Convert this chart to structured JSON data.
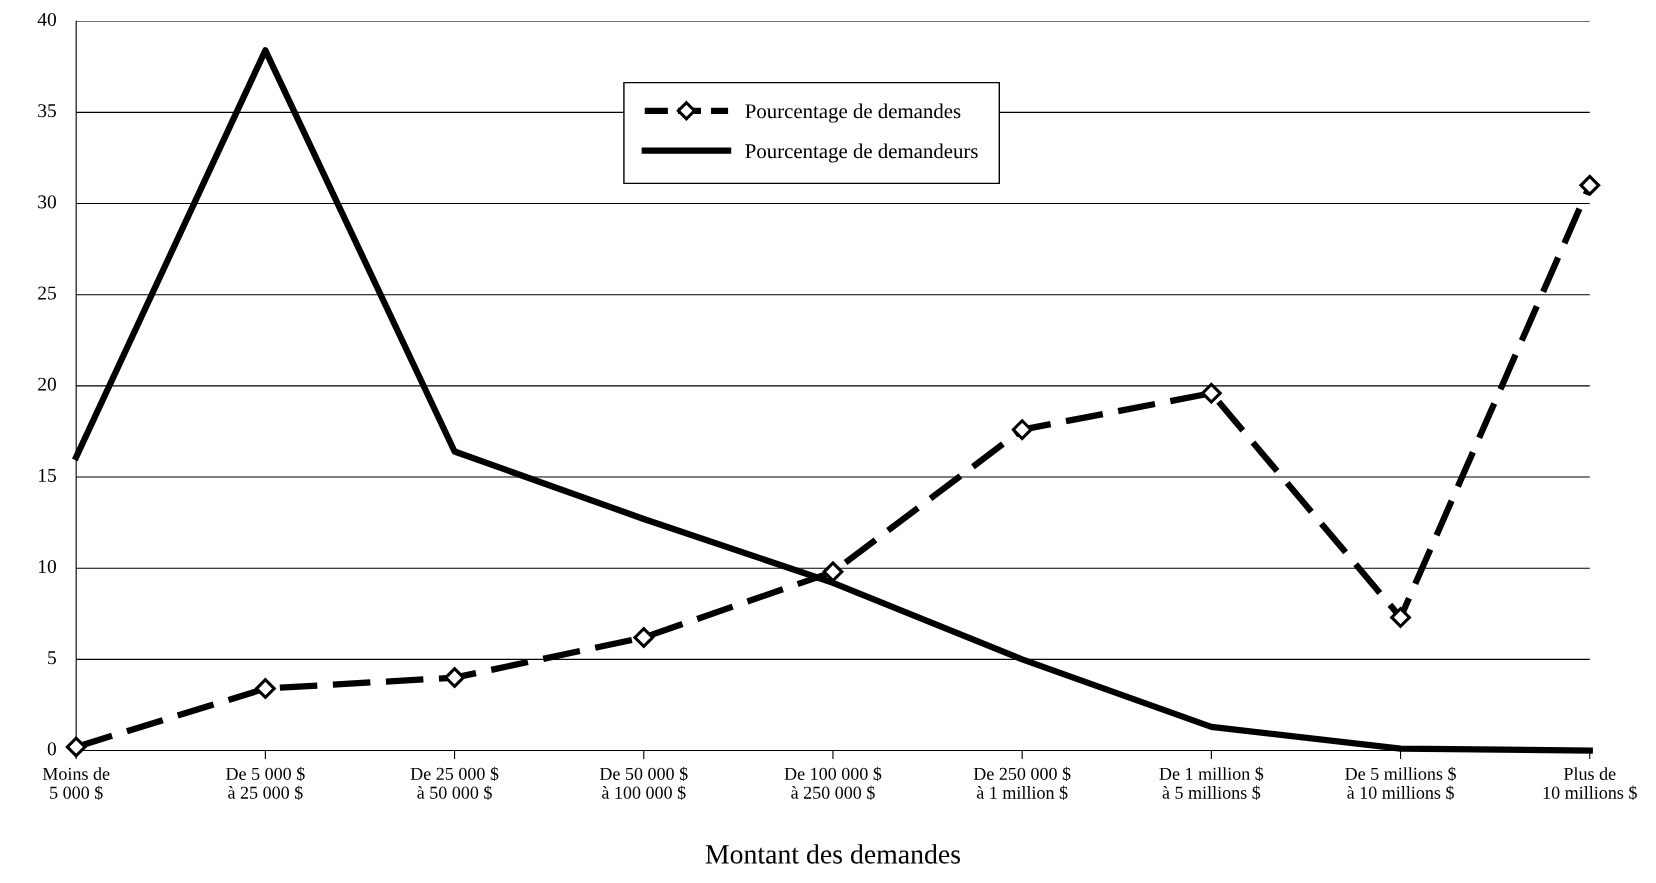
{
  "chart_data": {
    "type": "line",
    "xlabel": "Montant des demandes",
    "categories": [
      "Moins de\n5 000 $",
      "De 5 000 $\nà 25 000 $",
      "De 25 000 $\nà 50 000 $",
      "De 50 000 $\nà 100 000 $",
      "De 100 000 $\nà 250 000 $",
      "De 250 000 $\nà 1 million $",
      "De 1 million $\nà 5 millions $",
      "De 5 millions $\nà 10 millions $",
      "Plus de\n10 millions $"
    ],
    "series": [
      {
        "name": "Pourcentage de demandes",
        "color": "#000000",
        "marker": "diamond",
        "line_style": "dashed",
        "values": [
          0.2,
          3.4,
          4.0,
          6.2,
          9.8,
          17.6,
          19.6,
          7.3,
          31.0
        ]
      },
      {
        "name": "Pourcentage de demandeurs",
        "color": "#000000",
        "marker": "none",
        "line_style": "solid",
        "values": [
          16.1,
          38.4,
          16.4,
          12.7,
          9.2,
          5.0,
          1.3,
          0.1,
          0.0
        ]
      }
    ],
    "ylim": [
      0,
      40
    ],
    "yticks": [
      0,
      5,
      10,
      15,
      20,
      25,
      30,
      35,
      40
    ],
    "grid": "y",
    "legend": "top"
  }
}
